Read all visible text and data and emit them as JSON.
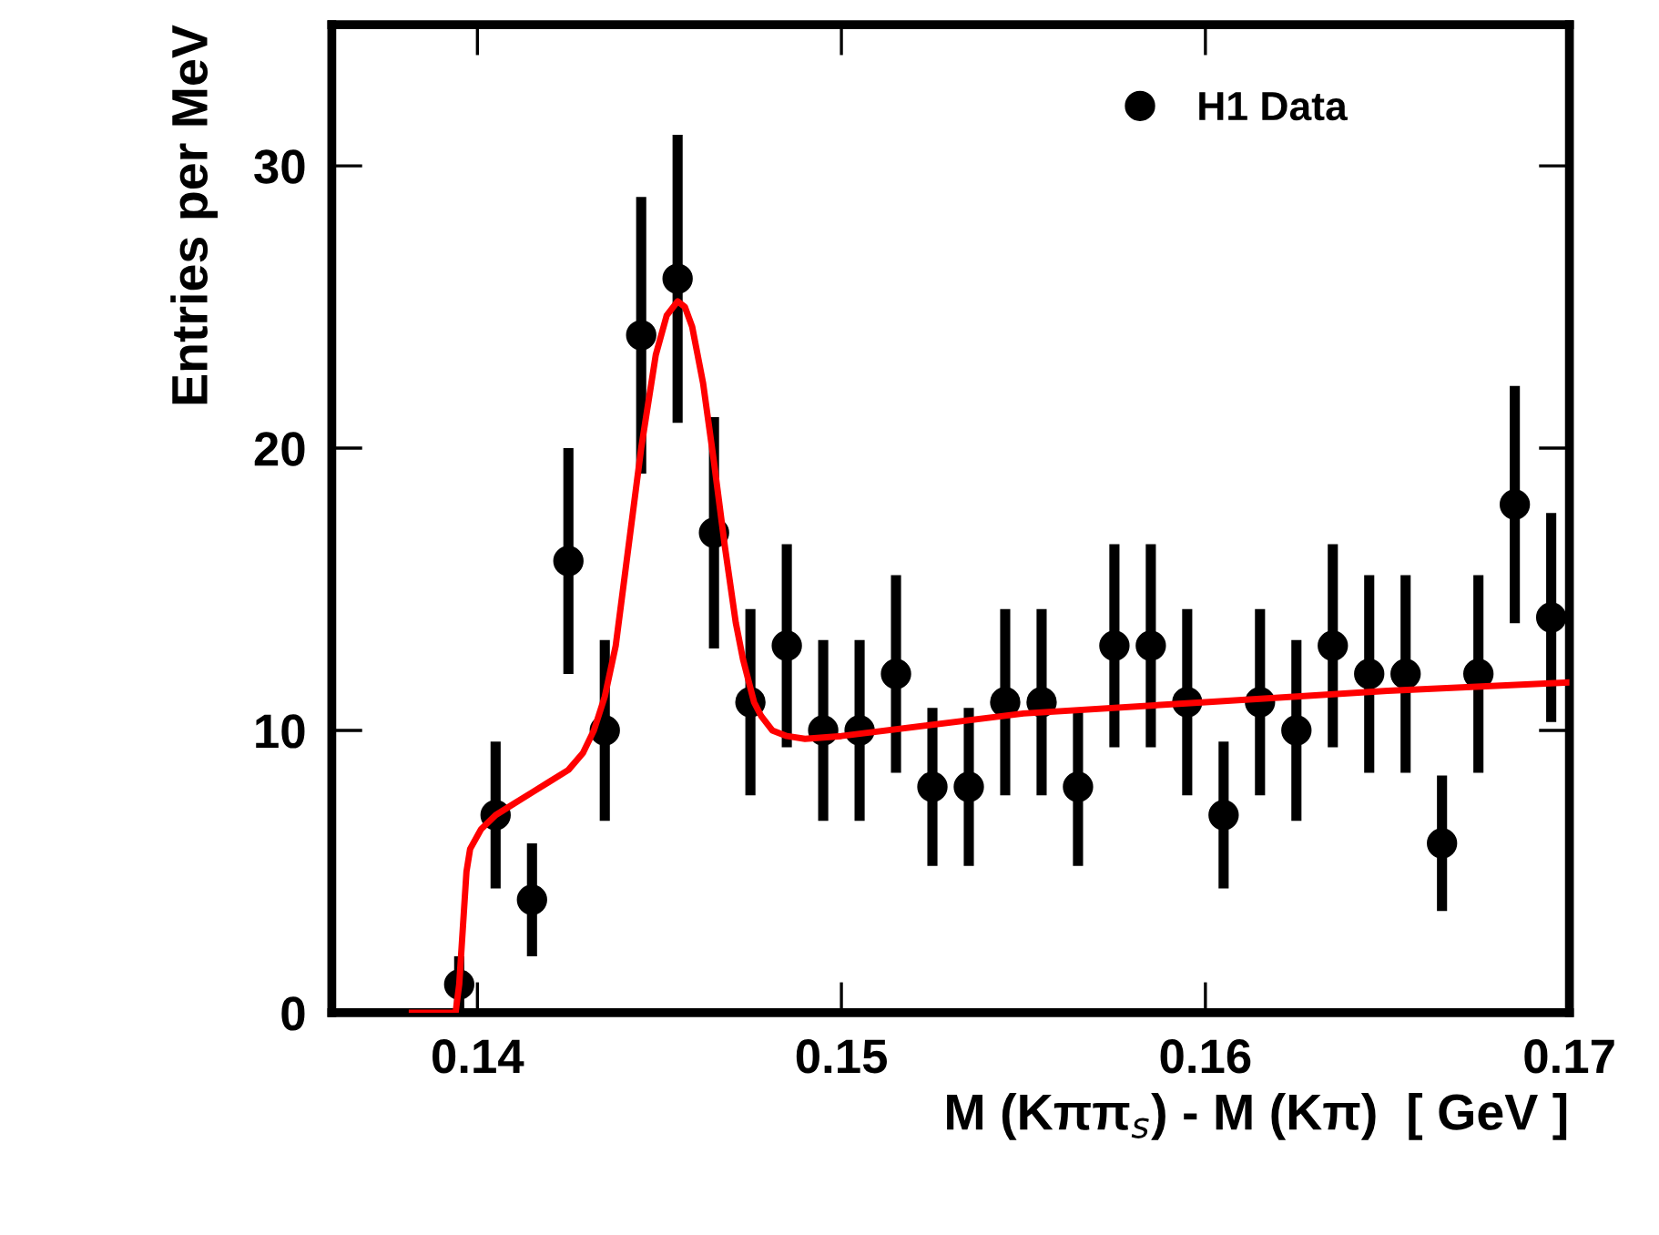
{
  "chart_data": {
    "type": "scatter",
    "xlabel": "M (Kππ$_{s}$) - M (Kπ)  [ GeV ]",
    "ylabel": "Entries per MeV",
    "xlim": [
      0.136,
      0.17
    ],
    "xticks": [
      0.14,
      0.15,
      0.16,
      0.17
    ],
    "ylim": [
      0,
      35
    ],
    "yticks": [
      0,
      10,
      20,
      30
    ],
    "grid": false,
    "legend": "top right",
    "series": [
      {
        "name": "H1 Data",
        "marker": "circle",
        "color": "#000000",
        "x": [
          0.1395,
          0.1405,
          0.1415,
          0.1425,
          0.1435,
          0.1445,
          0.1455,
          0.1465,
          0.1475,
          0.1485,
          0.1495,
          0.1505,
          0.1515,
          0.1525,
          0.1535,
          0.1545,
          0.1555,
          0.1565,
          0.1575,
          0.1585,
          0.1595,
          0.1605,
          0.1615,
          0.1625,
          0.1635,
          0.1645,
          0.1655,
          0.1665,
          0.1675,
          0.1685,
          0.1695
        ],
        "values": [
          1,
          7,
          4,
          16,
          10,
          24,
          26,
          17,
          11,
          13,
          10,
          10,
          12,
          8,
          8,
          11,
          11,
          8,
          13,
          13,
          11,
          7,
          11,
          10,
          13,
          12,
          12,
          6,
          12,
          18,
          14
        ],
        "errors": [
          1,
          2.6,
          2,
          4,
          3.2,
          4.9,
          5.1,
          4.1,
          3.3,
          3.6,
          3.2,
          3.2,
          3.5,
          2.8,
          2.8,
          3.3,
          3.3,
          2.8,
          3.6,
          3.6,
          3.3,
          2.6,
          3.3,
          3.2,
          3.6,
          3.5,
          3.5,
          2.4,
          3.5,
          4.2,
          3.7
        ]
      },
      {
        "type": "line",
        "marker": "none",
        "color": "#ff0000",
        "line_style": "solid",
        "x": [
          0.1382,
          0.1394,
          0.1395,
          0.1396,
          0.1397,
          0.1398,
          0.1401,
          0.1405,
          0.141,
          0.1415,
          0.142,
          0.1425,
          0.1429,
          0.1432,
          0.1435,
          0.1438,
          0.1441,
          0.1445,
          0.1449,
          0.1452,
          0.1455,
          0.1457,
          0.1459,
          0.1462,
          0.1465,
          0.1468,
          0.1471,
          0.1473,
          0.1476,
          0.1478,
          0.1481,
          0.1485,
          0.149,
          0.15,
          0.155,
          0.16,
          0.165,
          0.17
        ],
        "values": [
          0,
          0,
          1,
          3,
          5,
          5.8,
          6.5,
          7,
          7.4,
          7.8,
          8.2,
          8.6,
          9.2,
          10,
          11.2,
          13,
          16,
          20,
          23.3,
          24.7,
          25.2,
          25,
          24.3,
          22.3,
          19.5,
          16.5,
          13.8,
          12.5,
          11,
          10.5,
          10,
          9.8,
          9.7,
          9.8,
          10.6,
          11.0,
          11.4,
          11.7
        ]
      }
    ]
  }
}
